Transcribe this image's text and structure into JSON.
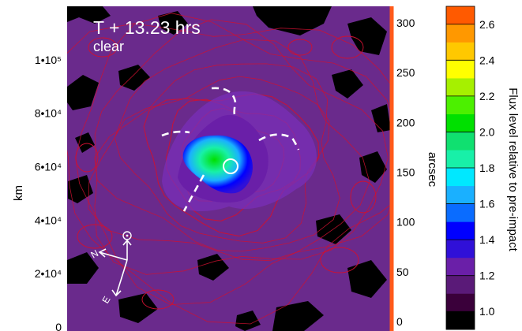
{
  "chart_data": {
    "type": "heatmap",
    "title": "T + 13.23 hrs",
    "subtitle": "clear",
    "left_axis": {
      "label": "km",
      "range": [
        0,
        120000
      ],
      "ticks": [
        {
          "value": 0,
          "label": "0"
        },
        {
          "value": 20000,
          "label": "2•10⁴"
        },
        {
          "value": 40000,
          "label": "4•10⁴"
        },
        {
          "value": 60000,
          "label": "6•10⁴"
        },
        {
          "value": 80000,
          "label": "8•10⁴"
        },
        {
          "value": 100000,
          "label": "1•10⁵"
        }
      ]
    },
    "right_axis": {
      "label": "arcsec",
      "range": [
        0,
        315
      ],
      "ticks": [
        {
          "value": 0,
          "label": "0"
        },
        {
          "value": 50,
          "label": "50"
        },
        {
          "value": 100,
          "label": "100"
        },
        {
          "value": 150,
          "label": "150"
        },
        {
          "value": 200,
          "label": "200"
        },
        {
          "value": 250,
          "label": "250"
        },
        {
          "value": 300,
          "label": "300"
        }
      ]
    },
    "colorbar": {
      "label": "Flux level relative to pre-impact",
      "range": [
        0.9,
        2.7
      ],
      "ticks": [
        {
          "value": 1.0,
          "label": "1.0"
        },
        {
          "value": 1.2,
          "label": "1.2"
        },
        {
          "value": 1.4,
          "label": "1.4"
        },
        {
          "value": 1.6,
          "label": "1.6"
        },
        {
          "value": 1.8,
          "label": "1.8"
        },
        {
          "value": 2.0,
          "label": "2.0"
        },
        {
          "value": 2.2,
          "label": "2.2"
        },
        {
          "value": 2.4,
          "label": "2.4"
        },
        {
          "value": 2.6,
          "label": "2.6"
        }
      ],
      "levels": [
        {
          "lo": 0.9,
          "hi": 1.0,
          "color": "#000000"
        },
        {
          "lo": 1.0,
          "hi": 1.1,
          "color": "#3a003a"
        },
        {
          "lo": 1.1,
          "hi": 1.2,
          "color": "#5a1a78"
        },
        {
          "lo": 1.2,
          "hi": 1.3,
          "color": "#6a1fa8"
        },
        {
          "lo": 1.3,
          "hi": 1.4,
          "color": "#3010d8"
        },
        {
          "lo": 1.4,
          "hi": 1.5,
          "color": "#0000ff"
        },
        {
          "lo": 1.5,
          "hi": 1.6,
          "color": "#0a6cff"
        },
        {
          "lo": 1.6,
          "hi": 1.7,
          "color": "#1ab0ff"
        },
        {
          "lo": 1.7,
          "hi": 1.8,
          "color": "#00e8ff"
        },
        {
          "lo": 1.8,
          "hi": 1.9,
          "color": "#18f0a8"
        },
        {
          "lo": 1.9,
          "hi": 2.0,
          "color": "#10e070"
        },
        {
          "lo": 2.0,
          "hi": 2.1,
          "color": "#00e000"
        },
        {
          "lo": 2.1,
          "hi": 2.2,
          "color": "#4cf000"
        },
        {
          "lo": 2.2,
          "hi": 2.3,
          "color": "#a6f000"
        },
        {
          "lo": 2.3,
          "hi": 2.4,
          "color": "#ffff00"
        },
        {
          "lo": 2.4,
          "hi": 2.5,
          "color": "#ffc800"
        },
        {
          "lo": 2.5,
          "hi": 2.6,
          "color": "#ff9800"
        },
        {
          "lo": 2.6,
          "hi": 2.7,
          "color": "#ff5a00"
        }
      ]
    },
    "compass": {
      "north": "N",
      "east": "E"
    },
    "colors": {
      "background": "#6a2a8c",
      "contour": "#d01030",
      "void": "#000000",
      "marker": "#ffffff",
      "right_axis_line": "#ff5a1a"
    }
  }
}
